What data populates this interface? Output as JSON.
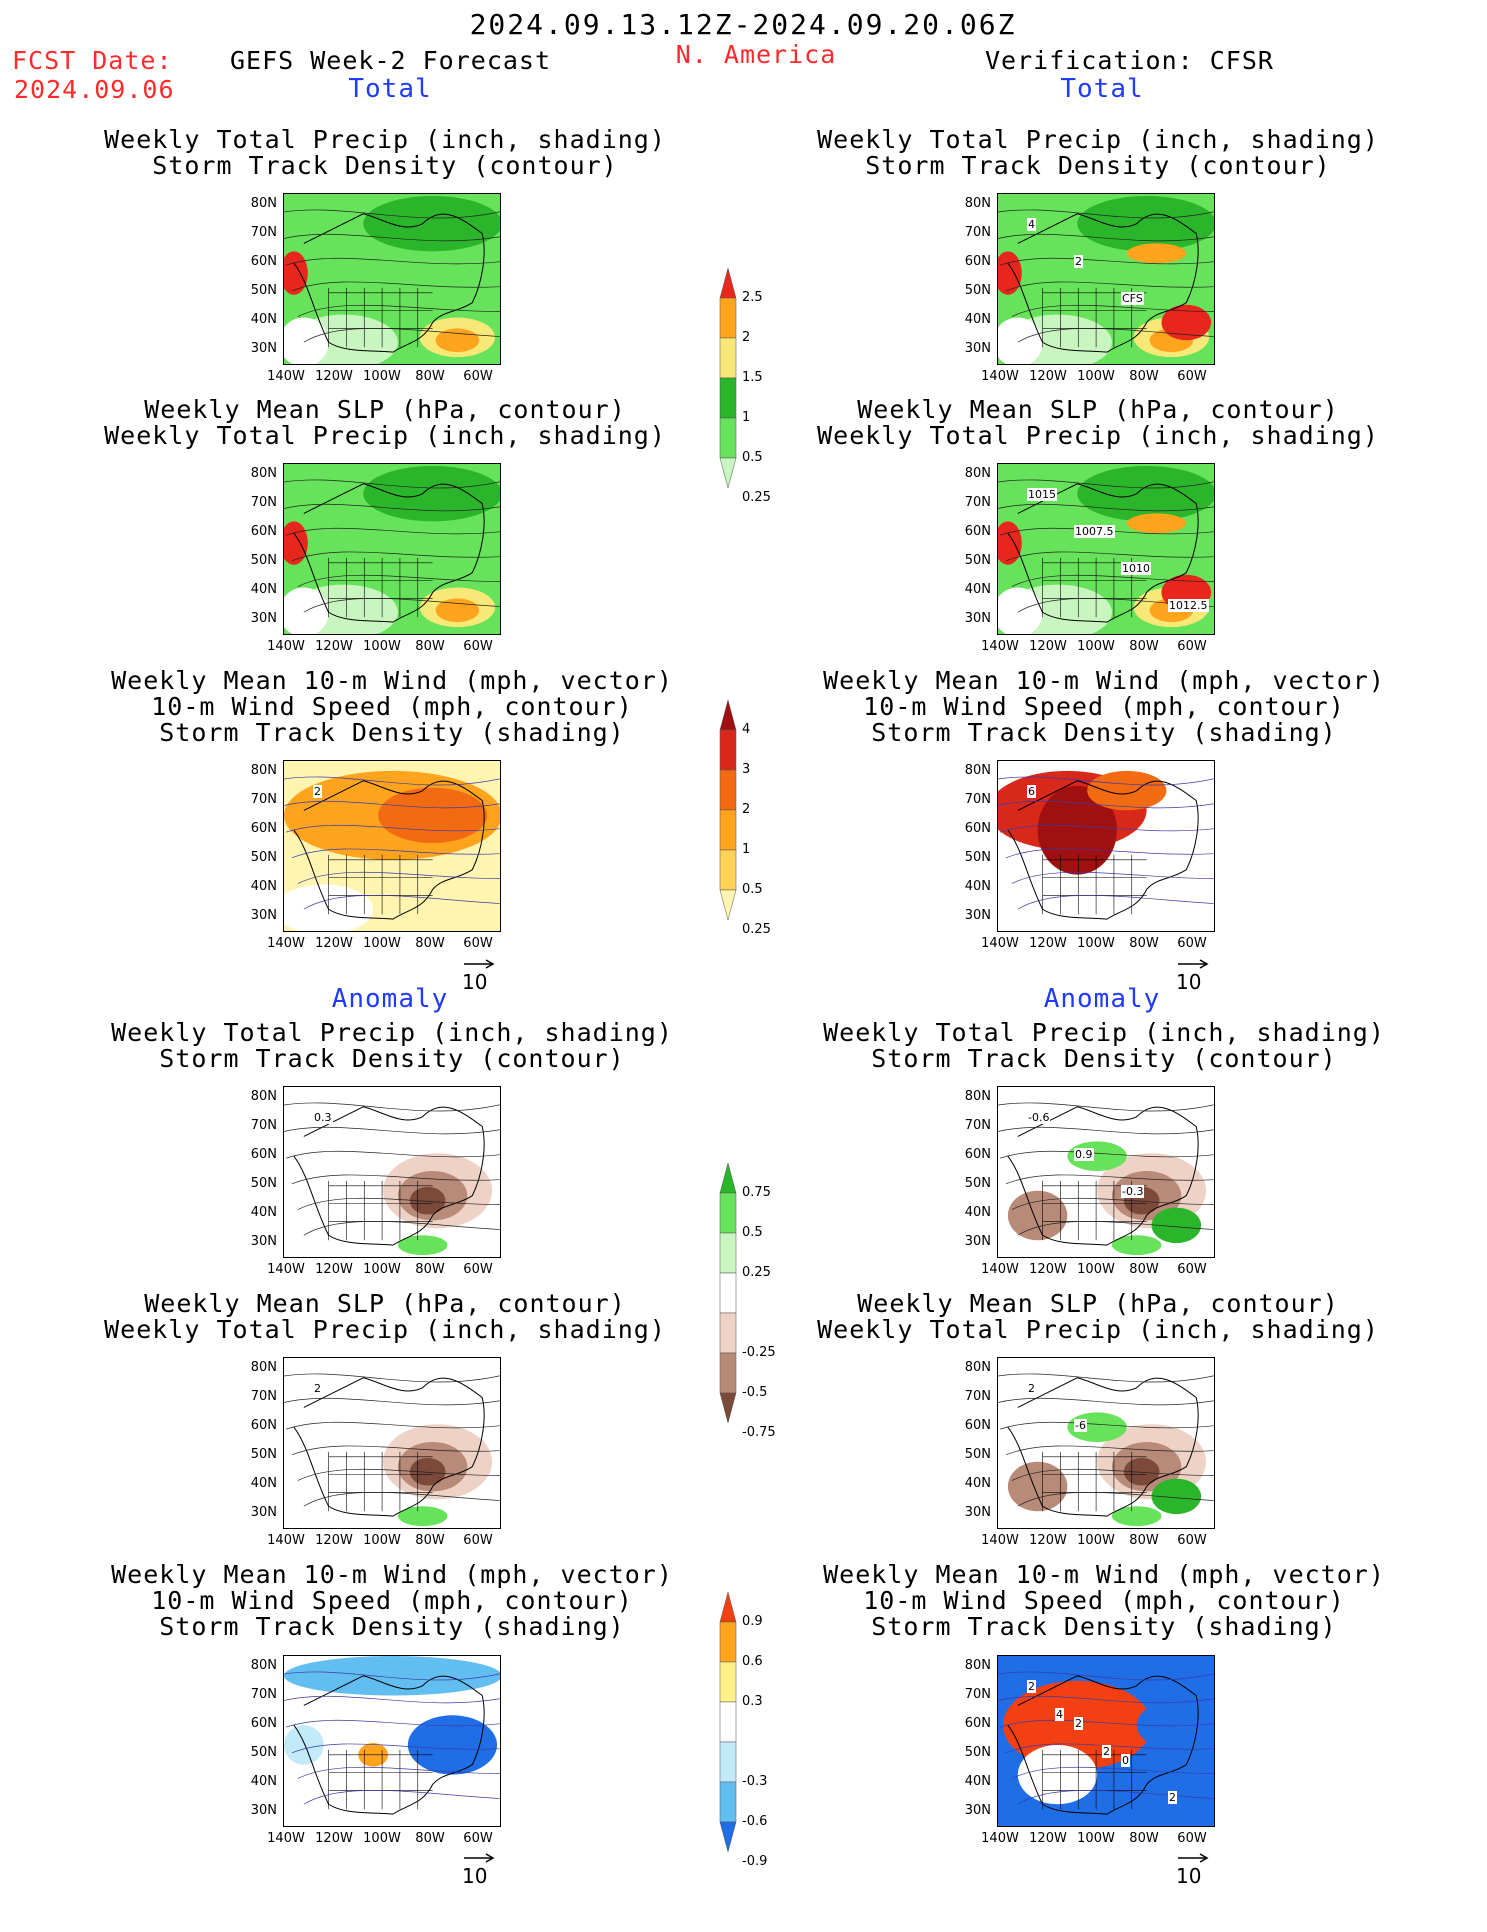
{
  "header": {
    "date_range": "2024.09.13.12Z-2024.09.20.06Z",
    "fcst_label": "FCST Date:",
    "fcst_date": "2024.09.06",
    "left_title": "GEFS Week-2 Forecast",
    "region": "N. America",
    "right_title": "Verification: CFSR"
  },
  "sections": {
    "total": "Total",
    "anomaly": "Anomaly"
  },
  "panel_titles": {
    "precip_track": [
      "Weekly Total Precip (inch, shading)",
      "Storm Track Density (contour)"
    ],
    "slp_precip": [
      "Weekly Mean SLP (hPa, contour)",
      "Weekly Total Precip (inch, shading)"
    ],
    "wind_track": [
      "Weekly Mean 10-m Wind (mph, vector)",
      "10-m Wind Speed (mph, contour)",
      "Storm Track Density (shading)"
    ]
  },
  "axes": {
    "lat_ticks": [
      "80N",
      "70N",
      "60N",
      "50N",
      "40N",
      "30N"
    ],
    "lon_ticks": [
      "140W",
      "120W",
      "100W",
      "80W",
      "60W"
    ]
  },
  "vector_ref": "10",
  "colorbars": {
    "precip_total": [
      "2.5",
      "2",
      "1.5",
      "1",
      "0.5",
      "0.25"
    ],
    "track_total": [
      "4",
      "3",
      "2",
      "1",
      "0.5",
      "0.25"
    ],
    "precip_anom": [
      "0.75",
      "0.5",
      "0.25",
      "-0.25",
      "-0.5",
      "-0.75"
    ],
    "track_anom": [
      "0.9",
      "0.6",
      "0.3",
      "-0.3",
      "-0.6",
      "-0.9"
    ]
  },
  "map_labels": {
    "r1_right": [
      "4",
      "2",
      "CFS"
    ],
    "r2_right": [
      "1015",
      "1007.5",
      "1010",
      "1012.5"
    ],
    "r3_left": [
      "2"
    ],
    "r3_right": [
      "6"
    ],
    "r4_left": [
      "0.3"
    ],
    "r4_right": [
      "-0.6",
      "0.9",
      "-0.3"
    ],
    "r5_left": [
      "2"
    ],
    "r5_right": [
      "2",
      "-6"
    ],
    "r6_right": [
      "2",
      "2",
      "0",
      "2",
      "4",
      "2"
    ]
  },
  "colors": {
    "precip_total": [
      "#c8f5c0",
      "#66e35a",
      "#2ab52a",
      "#f8e878",
      "#ffa41c",
      "#e8261c"
    ],
    "track_total": [
      "#fff5b0",
      "#ffd258",
      "#ffa41c",
      "#f26a12",
      "#d8281a",
      "#a01010"
    ],
    "precip_anom_neg": [
      "#eed2c6",
      "#b88a78",
      "#7c4a3a"
    ],
    "precip_anom_pos": [
      "#c8f5c0",
      "#66e35a",
      "#2ab52a"
    ],
    "track_anom_neg": [
      "#c2eaf8",
      "#62bef0",
      "#1f6ee6"
    ],
    "track_anom_pos": [
      "#fff08a",
      "#ffa41c",
      "#f24012"
    ]
  }
}
